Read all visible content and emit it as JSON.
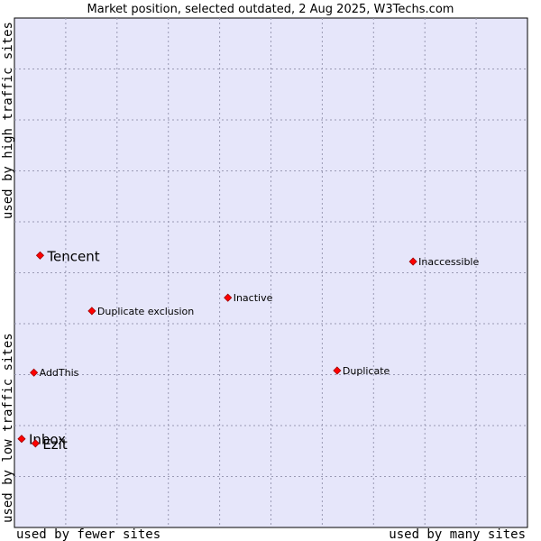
{
  "chart_data": {
    "type": "scatter",
    "title": "Market position, selected outdated, 2 Aug 2025, W3Techs.com",
    "xlabel_left": "used by fewer sites",
    "xlabel_right": "used by many sites",
    "ylabel_bottom": "used by low traffic sites",
    "ylabel_top": "used by high traffic sites",
    "xlim": [
      0,
      100
    ],
    "ylim": [
      0,
      100
    ],
    "grid": true,
    "colors": {
      "plot_bg": "#e6e6fa",
      "grid": "#9a9ab4",
      "marker": "#ff0000",
      "marker_edge": "#a00000"
    },
    "points": [
      {
        "label": "Tencent",
        "x": 5.0,
        "y": 53.4,
        "size": "large"
      },
      {
        "label": "Inaccessible",
        "x": 77.7,
        "y": 52.2,
        "size": "small"
      },
      {
        "label": "Inactive",
        "x": 41.6,
        "y": 45.1,
        "size": "small"
      },
      {
        "label": "Duplicate exclusion",
        "x": 15.1,
        "y": 42.5,
        "size": "small"
      },
      {
        "label": "AddThis",
        "x": 3.8,
        "y": 30.4,
        "size": "small"
      },
      {
        "label": "Duplicate",
        "x": 62.9,
        "y": 30.8,
        "size": "small"
      },
      {
        "label": "Inbox",
        "x": 1.4,
        "y": 17.4,
        "size": "large"
      },
      {
        "label": "Ezit",
        "x": 4.1,
        "y": 16.5,
        "size": "large"
      }
    ]
  }
}
